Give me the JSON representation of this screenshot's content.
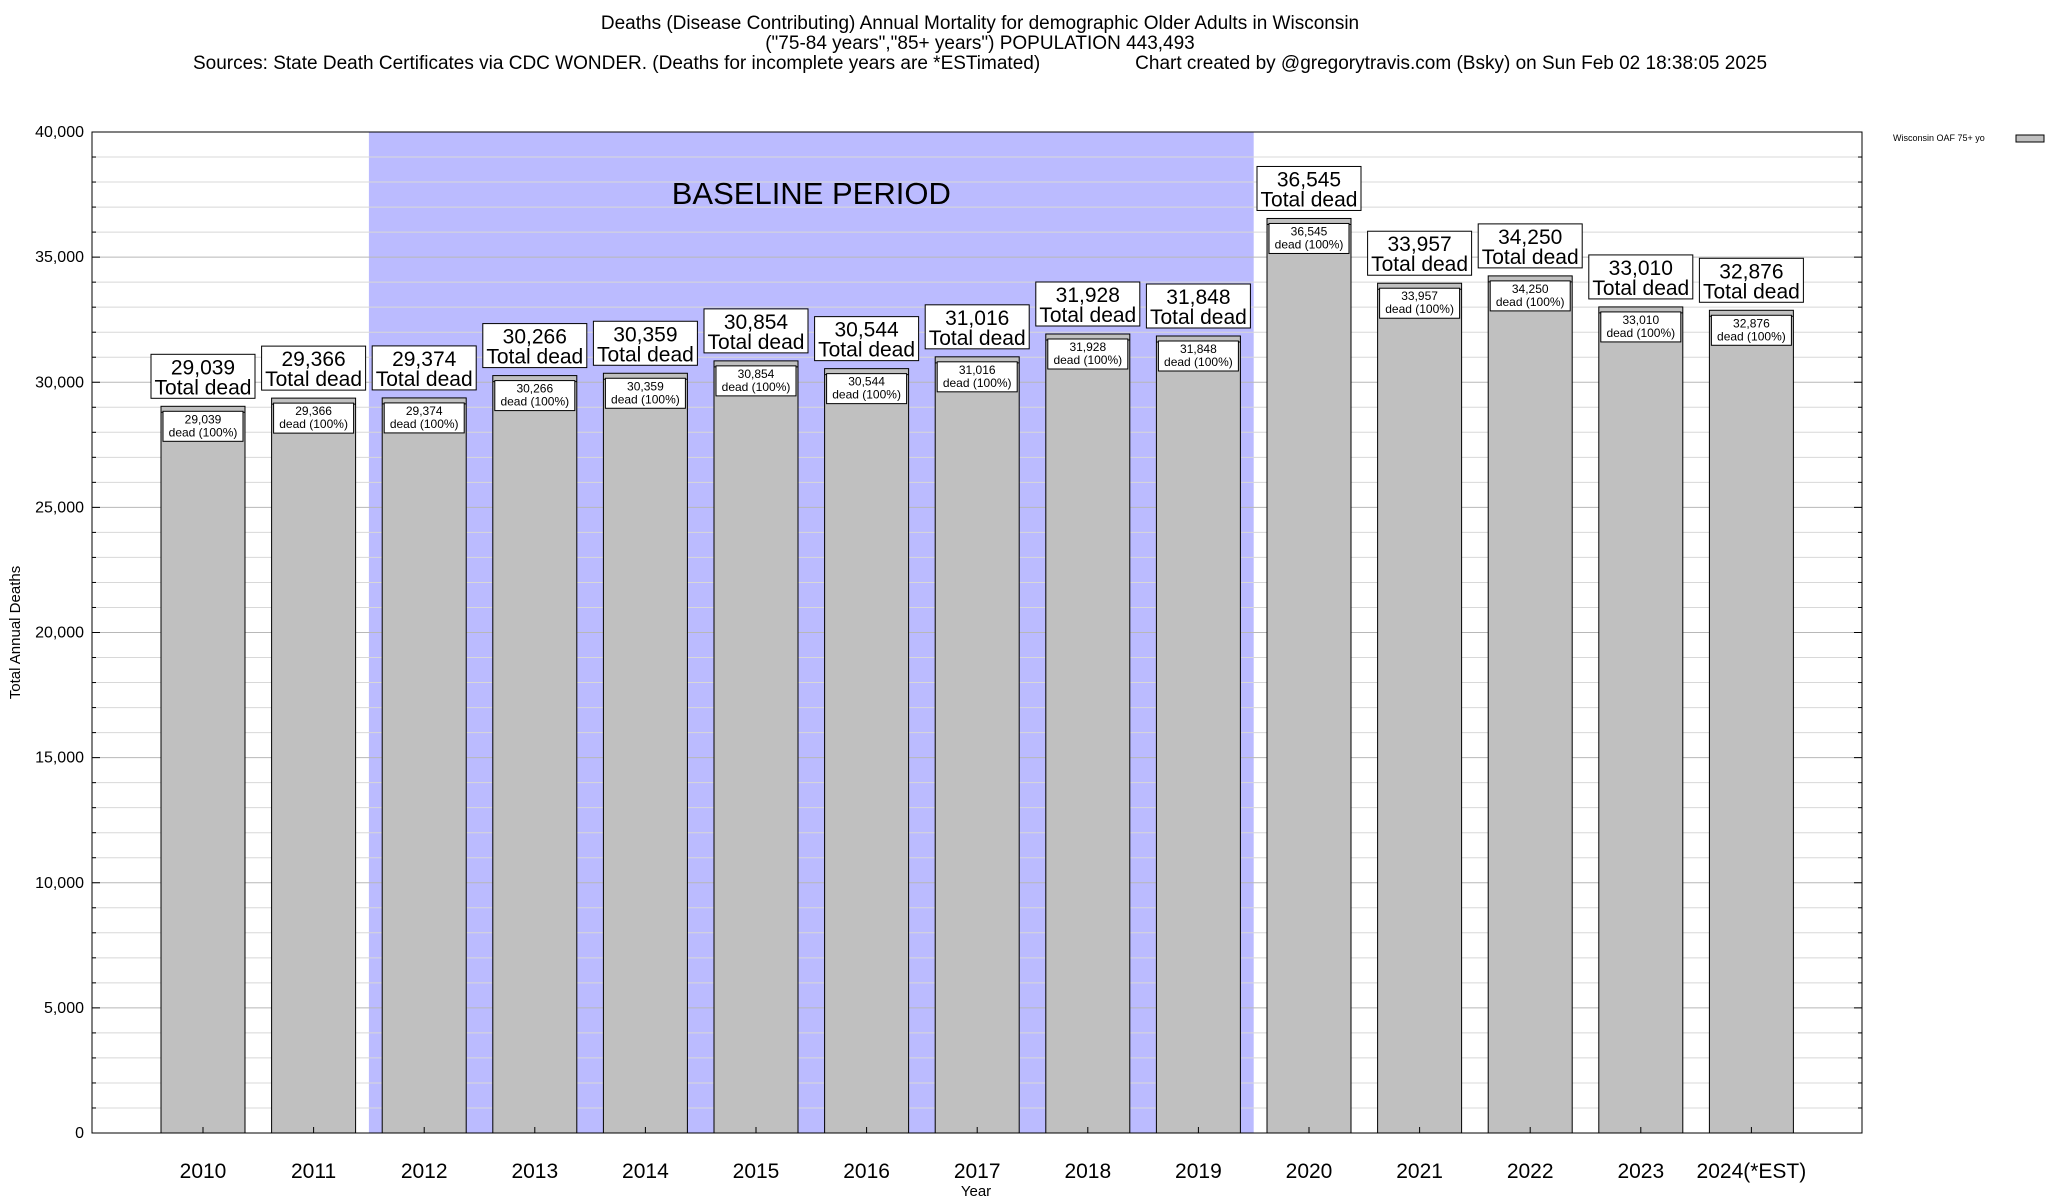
{
  "title": {
    "line1": "Deaths (Disease Contributing) Annual Mortality for demographic Older Adults in Wisconsin",
    "line2": "(\"75-84 years\",\"85+ years\") POPULATION 443,493",
    "line3": "Sources: State Death Certificates via CDC WONDER. (Deaths for incomplete years are *ESTimated)                  Chart created by @gregorytravis.com (Bsky) on Sun Feb 02 18:38:05 2025"
  },
  "chart_data": {
    "type": "bar",
    "categories": [
      "2010",
      "2011",
      "2012",
      "2013",
      "2014",
      "2015",
      "2016",
      "2017",
      "2018",
      "2019",
      "2020",
      "2021",
      "2022",
      "2023",
      "2024(*EST)"
    ],
    "series": [
      {
        "name": "Wisconsin OAF 75+ yo",
        "values": [
          29039,
          29366,
          29374,
          30266,
          30359,
          30854,
          30544,
          31016,
          31928,
          31848,
          36545,
          33957,
          34250,
          33010,
          32876
        ],
        "color": "#c0c0c0"
      }
    ],
    "total_labels": [
      "29,039",
      "29,366",
      "29,374",
      "30,266",
      "30,359",
      "30,854",
      "30,544",
      "31,016",
      "31,928",
      "31,848",
      "36,545",
      "33,957",
      "34,250",
      "33,010",
      "32,876"
    ],
    "total_suffix": "Total dead",
    "inner_suffix": "dead (100%)",
    "xlabel": "Year",
    "ylabel": "Total Annual Deaths",
    "ylim": [
      0,
      40000
    ],
    "yticks": [
      0,
      5000,
      10000,
      15000,
      20000,
      25000,
      30000,
      35000,
      40000
    ],
    "ytick_labels": [
      "0",
      "5,000",
      "10,000",
      "15,000",
      "20,000",
      "25,000",
      "30,000",
      "35,000",
      "40,000"
    ],
    "grid": true,
    "legend_position": "top-right",
    "baseline_period": {
      "label": "BASELINE PERIOD",
      "from": "2012",
      "to": "2019",
      "color": "#bbbbff"
    }
  }
}
